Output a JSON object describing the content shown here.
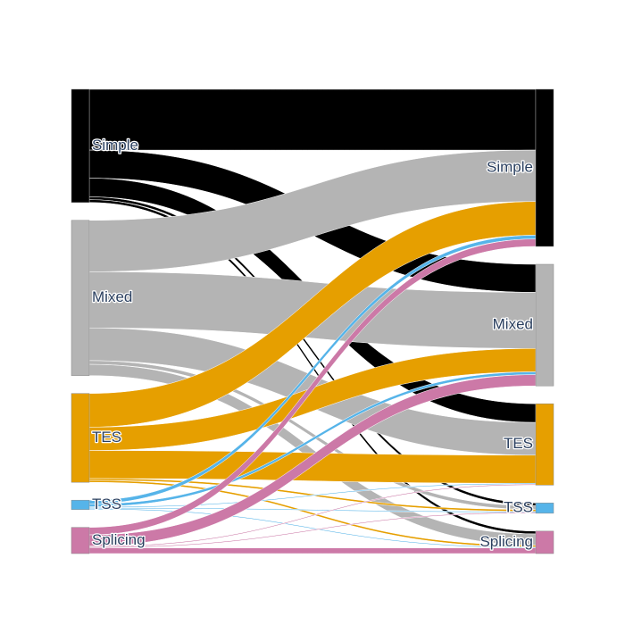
{
  "chart_data": {
    "type": "sankey",
    "colors": {
      "Simple": "#000000",
      "Mixed": "#b4b4b4",
      "TES": "#e69f00",
      "TSS": "#56b4e9",
      "Splicing": "#cc79a7"
    },
    "source_nodes": [
      "Simple",
      "Mixed",
      "TES",
      "TSS",
      "Splicing"
    ],
    "target_nodes": [
      "Simple",
      "Mixed",
      "TES",
      "TSS",
      "Splicing"
    ],
    "links": [
      {
        "source": "Simple",
        "target": "Simple",
        "value": 65
      },
      {
        "source": "Simple",
        "target": "Mixed",
        "value": 30
      },
      {
        "source": "Simple",
        "target": "TES",
        "value": 20
      },
      {
        "source": "Simple",
        "target": "TSS",
        "value": 3
      },
      {
        "source": "Simple",
        "target": "Splicing",
        "value": 3
      },
      {
        "source": "Mixed",
        "target": "Simple",
        "value": 55
      },
      {
        "source": "Mixed",
        "target": "Mixed",
        "value": 60
      },
      {
        "source": "Mixed",
        "target": "TES",
        "value": 35
      },
      {
        "source": "Mixed",
        "target": "TSS",
        "value": 4
      },
      {
        "source": "Mixed",
        "target": "Splicing",
        "value": 12
      },
      {
        "source": "TES",
        "target": "Simple",
        "value": 36
      },
      {
        "source": "TES",
        "target": "Mixed",
        "value": 25
      },
      {
        "source": "TES",
        "target": "TES",
        "value": 30
      },
      {
        "source": "TES",
        "target": "TSS",
        "value": 2
      },
      {
        "source": "TES",
        "target": "Splicing",
        "value": 2
      },
      {
        "source": "TSS",
        "target": "Simple",
        "value": 4
      },
      {
        "source": "TSS",
        "target": "Mixed",
        "value": 3
      },
      {
        "source": "TSS",
        "target": "TES",
        "value": 1
      },
      {
        "source": "TSS",
        "target": "TSS",
        "value": 1
      },
      {
        "source": "TSS",
        "target": "Splicing",
        "value": 1
      },
      {
        "source": "Splicing",
        "target": "Simple",
        "value": 8
      },
      {
        "source": "Splicing",
        "target": "Mixed",
        "value": 12
      },
      {
        "source": "Splicing",
        "target": "TES",
        "value": 1
      },
      {
        "source": "Splicing",
        "target": "TSS",
        "value": 1
      },
      {
        "source": "Splicing",
        "target": "Splicing",
        "value": 6
      }
    ]
  }
}
